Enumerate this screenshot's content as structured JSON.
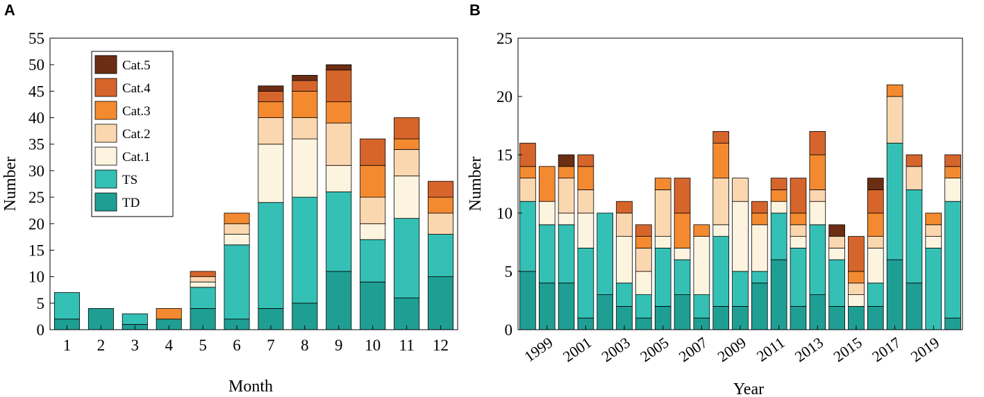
{
  "colors": {
    "TD": "#1f9e94",
    "TS": "#35c0b5",
    "Cat.1": "#fdf4df",
    "Cat.2": "#fbd7b0",
    "Cat.3": "#f48a30",
    "Cat.4": "#d6652c",
    "Cat.5": "#6b2e14"
  },
  "chart_data": [
    {
      "panel": "A",
      "type": "bar",
      "stacked": true,
      "xlabel": "Month",
      "ylabel": "Number",
      "ylim": [
        0,
        55
      ],
      "yticks": [
        "0",
        "5",
        "10",
        "15",
        "20",
        "25",
        "30",
        "35",
        "40",
        "45",
        "50",
        "55"
      ],
      "categories": [
        "1",
        "2",
        "3",
        "4",
        "5",
        "6",
        "7",
        "8",
        "9",
        "10",
        "11",
        "12"
      ],
      "legend_position": "top-left",
      "series": [
        {
          "name": "TD",
          "values": [
            2,
            4,
            1,
            2,
            4,
            2,
            4,
            5,
            11,
            9,
            6,
            10
          ]
        },
        {
          "name": "TS",
          "values": [
            5,
            0,
            2,
            0,
            4,
            14,
            20,
            20,
            15,
            8,
            15,
            8
          ]
        },
        {
          "name": "Cat.1",
          "values": [
            0,
            0,
            0,
            0,
            1,
            2,
            11,
            11,
            5,
            3,
            8,
            0
          ]
        },
        {
          "name": "Cat.2",
          "values": [
            0,
            0,
            0,
            0,
            1,
            2,
            5,
            4,
            8,
            5,
            5,
            4
          ]
        },
        {
          "name": "Cat.3",
          "values": [
            0,
            0,
            0,
            2,
            0,
            2,
            3,
            5,
            4,
            6,
            2,
            3
          ]
        },
        {
          "name": "Cat.4",
          "values": [
            0,
            0,
            0,
            0,
            1,
            0,
            2,
            2,
            6,
            5,
            4,
            3
          ]
        },
        {
          "name": "Cat.5",
          "values": [
            0,
            0,
            0,
            0,
            0,
            0,
            1,
            1,
            1,
            0,
            0,
            0
          ]
        }
      ]
    },
    {
      "panel": "B",
      "type": "bar",
      "stacked": true,
      "xlabel": "Year",
      "ylabel": "Number",
      "ylim": [
        0,
        25
      ],
      "yticks": [
        "0",
        "5",
        "10",
        "15",
        "20",
        "25"
      ],
      "categories": [
        "1998",
        "1999",
        "2000",
        "2001",
        "2002",
        "2003",
        "2004",
        "2005",
        "2006",
        "2007",
        "2008",
        "2009",
        "2010",
        "2011",
        "2012",
        "2013",
        "2014",
        "2015",
        "2016",
        "2017",
        "2018",
        "2019",
        "2020"
      ],
      "tick_labels": [
        "1999",
        "2001",
        "2003",
        "2005",
        "2007",
        "2009",
        "2011",
        "2013",
        "2015",
        "2017",
        "2019"
      ],
      "series": [
        {
          "name": "TD",
          "values": [
            5,
            4,
            4,
            1,
            3,
            2,
            1,
            2,
            3,
            1,
            2,
            2,
            4,
            6,
            2,
            3,
            2,
            2,
            2,
            6,
            4,
            0,
            1
          ]
        },
        {
          "name": "TS",
          "values": [
            6,
            5,
            5,
            6,
            7,
            2,
            2,
            5,
            3,
            2,
            6,
            3,
            1,
            4,
            5,
            6,
            4,
            0,
            2,
            10,
            8,
            7,
            10
          ]
        },
        {
          "name": "Cat.1",
          "values": [
            0,
            2,
            1,
            3,
            0,
            4,
            2,
            1,
            1,
            5,
            1,
            6,
            4,
            1,
            1,
            2,
            1,
            1,
            3,
            0,
            0,
            1,
            2
          ]
        },
        {
          "name": "Cat.2",
          "values": [
            2,
            0,
            3,
            2,
            0,
            2,
            2,
            4,
            0,
            0,
            4,
            2,
            0,
            0,
            1,
            1,
            1,
            1,
            1,
            4,
            2,
            1,
            0
          ]
        },
        {
          "name": "Cat.3",
          "values": [
            1,
            3,
            1,
            2,
            0,
            0,
            1,
            1,
            3,
            1,
            3,
            0,
            1,
            1,
            1,
            3,
            0,
            1,
            2,
            1,
            0,
            1,
            1
          ]
        },
        {
          "name": "Cat.4",
          "values": [
            2,
            0,
            0,
            1,
            0,
            1,
            1,
            0,
            3,
            0,
            1,
            0,
            1,
            1,
            3,
            2,
            0,
            3,
            2,
            0,
            1,
            0,
            1
          ]
        },
        {
          "name": "Cat.5",
          "values": [
            0,
            0,
            1,
            0,
            0,
            0,
            0,
            0,
            0,
            0,
            0,
            0,
            0,
            0,
            0,
            0,
            1,
            0,
            1,
            0,
            0,
            0,
            0
          ]
        }
      ]
    }
  ],
  "legend": [
    "Cat.5",
    "Cat.4",
    "Cat.3",
    "Cat.2",
    "Cat.1",
    "TS",
    "TD"
  ]
}
